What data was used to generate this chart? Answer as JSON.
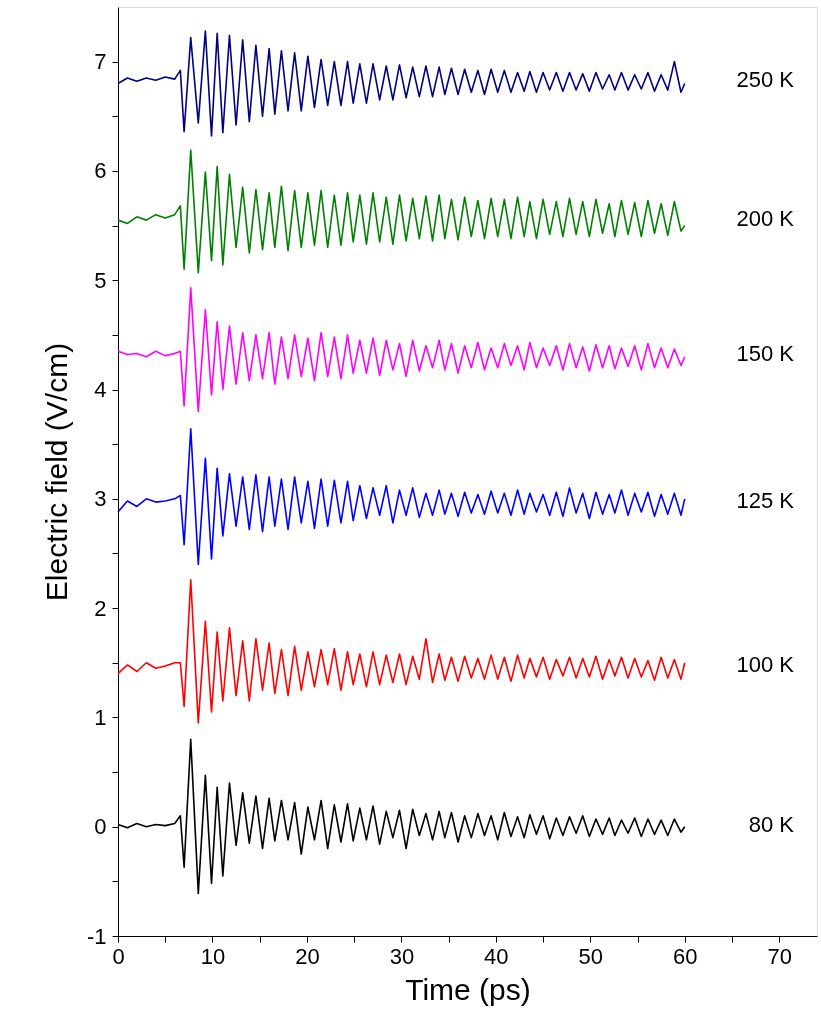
{
  "chart_data": {
    "type": "line",
    "xlabel": "Time (ps)",
    "ylabel": "Electric field (V/cm)",
    "xlim": [
      0,
      74
    ],
    "ylim": [
      -1,
      7.5
    ],
    "xticks": [
      0,
      {
        "value": 5,
        "label": null
      },
      10,
      {
        "value": 15,
        "label": null
      },
      20,
      {
        "value": 25,
        "label": null
      },
      30,
      {
        "value": 35,
        "label": null
      },
      40,
      {
        "value": 45,
        "label": null
      },
      50,
      {
        "value": 55,
        "label": null
      },
      60,
      {
        "value": 65,
        "label": null
      },
      70
    ],
    "yticks": [
      -1,
      {
        "value": -0.5,
        "label": null
      },
      0,
      {
        "value": 0.5,
        "label": null
      },
      1,
      {
        "value": 1.5,
        "label": null
      },
      2,
      {
        "value": 2.5,
        "label": null
      },
      3,
      {
        "value": 3.5,
        "label": null
      },
      4,
      {
        "value": 4.5,
        "label": null
      },
      5,
      {
        "value": 5.5,
        "label": null
      },
      6,
      {
        "value": 6.5,
        "label": null
      },
      7
    ],
    "grid": false,
    "legend": false,
    "line_style": "solid",
    "marker": "none",
    "x": [
      0,
      1,
      2,
      3,
      4,
      5,
      6,
      6.6,
      7.0,
      7.7,
      8.5,
      9.25,
      9.9,
      10.5,
      11.1,
      11.8,
      12.5,
      13.2,
      13.9,
      14.6,
      15.3,
      16.0,
      16.6,
      17.3,
      18.0,
      18.7,
      19.4,
      20.1,
      20.8,
      21.5,
      22.2,
      22.9,
      23.6,
      24.3,
      24.9,
      25.6,
      26.3,
      27.0,
      27.7,
      28.4,
      29.1,
      29.8,
      30.5,
      31.2,
      31.9,
      32.6,
      33.3,
      34.0,
      34.6,
      35.3,
      36.0,
      36.7,
      37.4,
      38.1,
      38.8,
      39.5,
      40.2,
      40.9,
      41.6,
      42.3,
      43.0,
      43.6,
      44.3,
      45.0,
      45.7,
      46.4,
      47.1,
      47.8,
      48.5,
      49.2,
      49.9,
      50.6,
      51.3,
      52.0,
      52.6,
      53.3,
      54.0,
      54.7,
      55.4,
      56.1,
      56.8,
      57.5,
      58.2,
      58.9,
      59.6,
      60.0
    ],
    "series": [
      {
        "name": "80 K",
        "color": "#000000",
        "values": [
          0.02,
          -0.01,
          0.03,
          0.0,
          0.02,
          0.01,
          0.03,
          0.1,
          -0.37,
          0.8,
          -0.61,
          0.47,
          -0.52,
          0.36,
          -0.45,
          0.4,
          -0.17,
          0.31,
          -0.15,
          0.28,
          -0.2,
          0.26,
          -0.13,
          0.24,
          -0.12,
          0.22,
          -0.25,
          0.18,
          -0.12,
          0.24,
          -0.2,
          0.2,
          -0.14,
          0.21,
          -0.13,
          0.17,
          -0.12,
          0.19,
          -0.16,
          0.14,
          -0.1,
          0.15,
          -0.2,
          0.16,
          -0.08,
          0.12,
          -0.12,
          0.14,
          -0.1,
          0.13,
          -0.14,
          0.1,
          -0.1,
          0.12,
          -0.08,
          0.1,
          -0.12,
          0.13,
          -0.09,
          0.09,
          -0.1,
          0.11,
          -0.07,
          0.1,
          -0.11,
          0.08,
          -0.08,
          0.09,
          -0.06,
          0.1,
          -0.09,
          0.07,
          -0.07,
          0.08,
          -0.08,
          0.06,
          -0.06,
          0.08,
          -0.09,
          0.07,
          -0.07,
          0.06,
          -0.08,
          0.07,
          -0.05,
          0.0
        ]
      },
      {
        "name": "100 K",
        "color": "#ff0000",
        "values": [
          1.4,
          1.48,
          1.42,
          1.5,
          1.45,
          1.47,
          1.5,
          1.5,
          1.1,
          2.26,
          0.95,
          1.88,
          1.05,
          1.78,
          1.15,
          1.82,
          1.2,
          1.7,
          1.15,
          1.72,
          1.25,
          1.68,
          1.22,
          1.62,
          1.2,
          1.65,
          1.25,
          1.6,
          1.28,
          1.62,
          1.3,
          1.63,
          1.25,
          1.6,
          1.3,
          1.58,
          1.28,
          1.6,
          1.3,
          1.57,
          1.32,
          1.58,
          1.3,
          1.56,
          1.35,
          1.72,
          1.32,
          1.58,
          1.34,
          1.55,
          1.33,
          1.56,
          1.36,
          1.54,
          1.35,
          1.57,
          1.35,
          1.55,
          1.33,
          1.57,
          1.36,
          1.54,
          1.37,
          1.55,
          1.35,
          1.53,
          1.38,
          1.55,
          1.36,
          1.54,
          1.37,
          1.56,
          1.35,
          1.53,
          1.38,
          1.55,
          1.36,
          1.54,
          1.37,
          1.52,
          1.34,
          1.55,
          1.36,
          1.53,
          1.35,
          1.5
        ]
      },
      {
        "name": "125 K",
        "color": "#0000ff",
        "values": [
          2.88,
          2.98,
          2.93,
          3.0,
          2.97,
          2.98,
          3.0,
          3.03,
          2.58,
          3.64,
          2.4,
          3.37,
          2.45,
          3.28,
          2.66,
          3.23,
          2.75,
          3.2,
          2.72,
          3.22,
          2.7,
          3.2,
          2.75,
          3.18,
          2.72,
          3.2,
          2.78,
          3.16,
          2.73,
          3.18,
          2.75,
          3.17,
          2.78,
          3.16,
          2.8,
          3.12,
          2.82,
          3.1,
          2.85,
          3.12,
          2.78,
          3.08,
          2.85,
          3.1,
          2.83,
          3.05,
          2.85,
          3.08,
          2.86,
          3.05,
          2.84,
          3.06,
          2.87,
          3.04,
          2.86,
          3.07,
          2.87,
          3.05,
          2.85,
          3.08,
          2.86,
          3.05,
          2.88,
          3.04,
          2.85,
          3.06,
          2.84,
          3.1,
          2.87,
          3.05,
          2.82,
          3.06,
          2.86,
          3.04,
          2.87,
          3.08,
          2.85,
          3.05,
          2.88,
          3.06,
          2.84,
          3.04,
          2.86,
          3.05,
          2.85,
          3.0
        ]
      },
      {
        "name": "150 K",
        "color": "#ff00ff",
        "values": [
          4.35,
          4.32,
          4.33,
          4.3,
          4.35,
          4.31,
          4.33,
          4.35,
          3.85,
          4.93,
          3.8,
          4.73,
          3.95,
          4.62,
          4.0,
          4.58,
          4.05,
          4.52,
          4.08,
          4.5,
          4.1,
          4.52,
          4.05,
          4.48,
          4.1,
          4.5,
          4.12,
          4.47,
          4.08,
          4.52,
          4.12,
          4.48,
          4.1,
          4.5,
          4.15,
          4.45,
          4.15,
          4.47,
          4.13,
          4.45,
          4.18,
          4.42,
          4.12,
          4.45,
          4.17,
          4.4,
          4.2,
          4.45,
          4.18,
          4.42,
          4.15,
          4.4,
          4.2,
          4.43,
          4.18,
          4.38,
          4.2,
          4.42,
          4.22,
          4.4,
          4.18,
          4.43,
          4.2,
          4.38,
          4.22,
          4.4,
          4.18,
          4.42,
          4.2,
          4.39,
          4.17,
          4.41,
          4.2,
          4.4,
          4.19,
          4.38,
          4.21,
          4.4,
          4.18,
          4.42,
          4.2,
          4.38,
          4.2,
          4.37,
          4.22,
          4.3
        ]
      },
      {
        "name": "200 K",
        "color": "#008000",
        "values": [
          5.55,
          5.52,
          5.58,
          5.55,
          5.6,
          5.57,
          5.6,
          5.68,
          5.1,
          6.19,
          5.07,
          5.99,
          5.18,
          6.04,
          5.14,
          5.97,
          5.3,
          5.85,
          5.25,
          5.83,
          5.28,
          5.8,
          5.3,
          5.86,
          5.27,
          5.82,
          5.3,
          5.8,
          5.32,
          5.82,
          5.3,
          5.78,
          5.32,
          5.8,
          5.35,
          5.78,
          5.33,
          5.8,
          5.35,
          5.76,
          5.33,
          5.78,
          5.36,
          5.75,
          5.38,
          5.77,
          5.36,
          5.78,
          5.38,
          5.74,
          5.37,
          5.76,
          5.4,
          5.73,
          5.38,
          5.75,
          5.4,
          5.74,
          5.38,
          5.76,
          5.4,
          5.72,
          5.38,
          5.74,
          5.42,
          5.72,
          5.4,
          5.75,
          5.42,
          5.72,
          5.4,
          5.74,
          5.43,
          5.7,
          5.4,
          5.73,
          5.42,
          5.71,
          5.4,
          5.73,
          5.43,
          5.7,
          5.41,
          5.72,
          5.45,
          5.5
        ]
      },
      {
        "name": "250 K",
        "color": "#000080",
        "values": [
          6.8,
          6.85,
          6.82,
          6.85,
          6.83,
          6.86,
          6.84,
          6.92,
          6.36,
          7.22,
          6.44,
          7.28,
          6.32,
          7.26,
          6.35,
          7.24,
          6.42,
          7.2,
          6.45,
          7.15,
          6.5,
          7.12,
          6.52,
          7.1,
          6.55,
          7.08,
          6.55,
          7.05,
          6.58,
          7.02,
          6.6,
          7.0,
          6.6,
          7.0,
          6.62,
          6.98,
          6.62,
          6.98,
          6.65,
          6.96,
          6.65,
          6.97,
          6.67,
          6.95,
          6.68,
          6.96,
          6.68,
          6.95,
          6.7,
          6.94,
          6.7,
          6.93,
          6.72,
          6.92,
          6.7,
          6.93,
          6.72,
          6.92,
          6.72,
          6.9,
          6.73,
          6.91,
          6.72,
          6.9,
          6.74,
          6.9,
          6.73,
          6.9,
          6.74,
          6.89,
          6.73,
          6.9,
          6.75,
          6.88,
          6.74,
          6.9,
          6.74,
          6.88,
          6.75,
          6.9,
          6.73,
          6.88,
          6.74,
          7.0,
          6.72,
          6.8
        ]
      }
    ]
  }
}
